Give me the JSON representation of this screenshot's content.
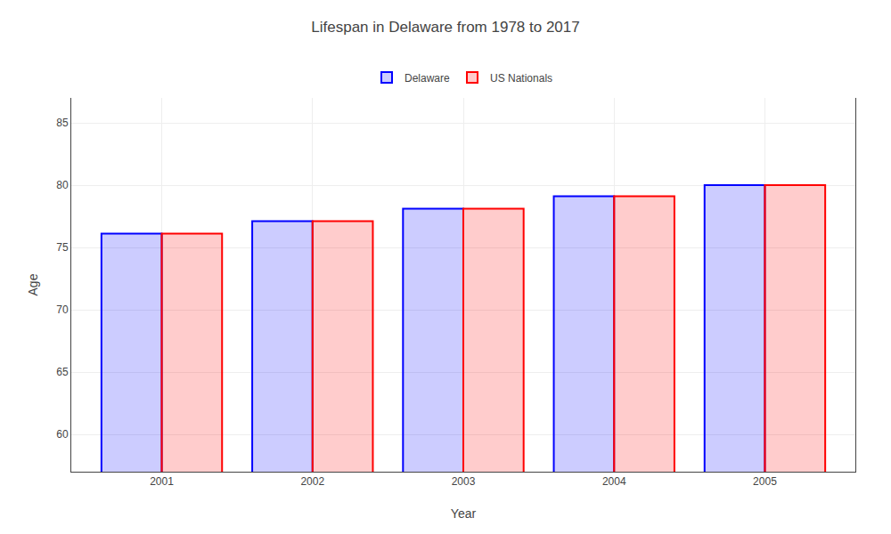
{
  "chart_data": {
    "type": "bar",
    "title": "Lifespan in Delaware from 1978 to 2017",
    "x_label": "Year",
    "y_label": "Age",
    "categories": [
      "2001",
      "2002",
      "2003",
      "2004",
      "2005"
    ],
    "series": [
      {
        "name": "Delaware",
        "color": "#0000ff",
        "values": [
          76.1,
          77.1,
          78.1,
          79.1,
          80.0
        ]
      },
      {
        "name": "US Nationals",
        "color": "#ff0000",
        "values": [
          76.1,
          77.1,
          78.1,
          79.1,
          80.0
        ]
      }
    ],
    "ylim": [
      57,
      87
    ],
    "yticks": [
      60,
      65,
      70,
      75,
      80,
      85
    ],
    "grid": true,
    "legend": "top"
  }
}
